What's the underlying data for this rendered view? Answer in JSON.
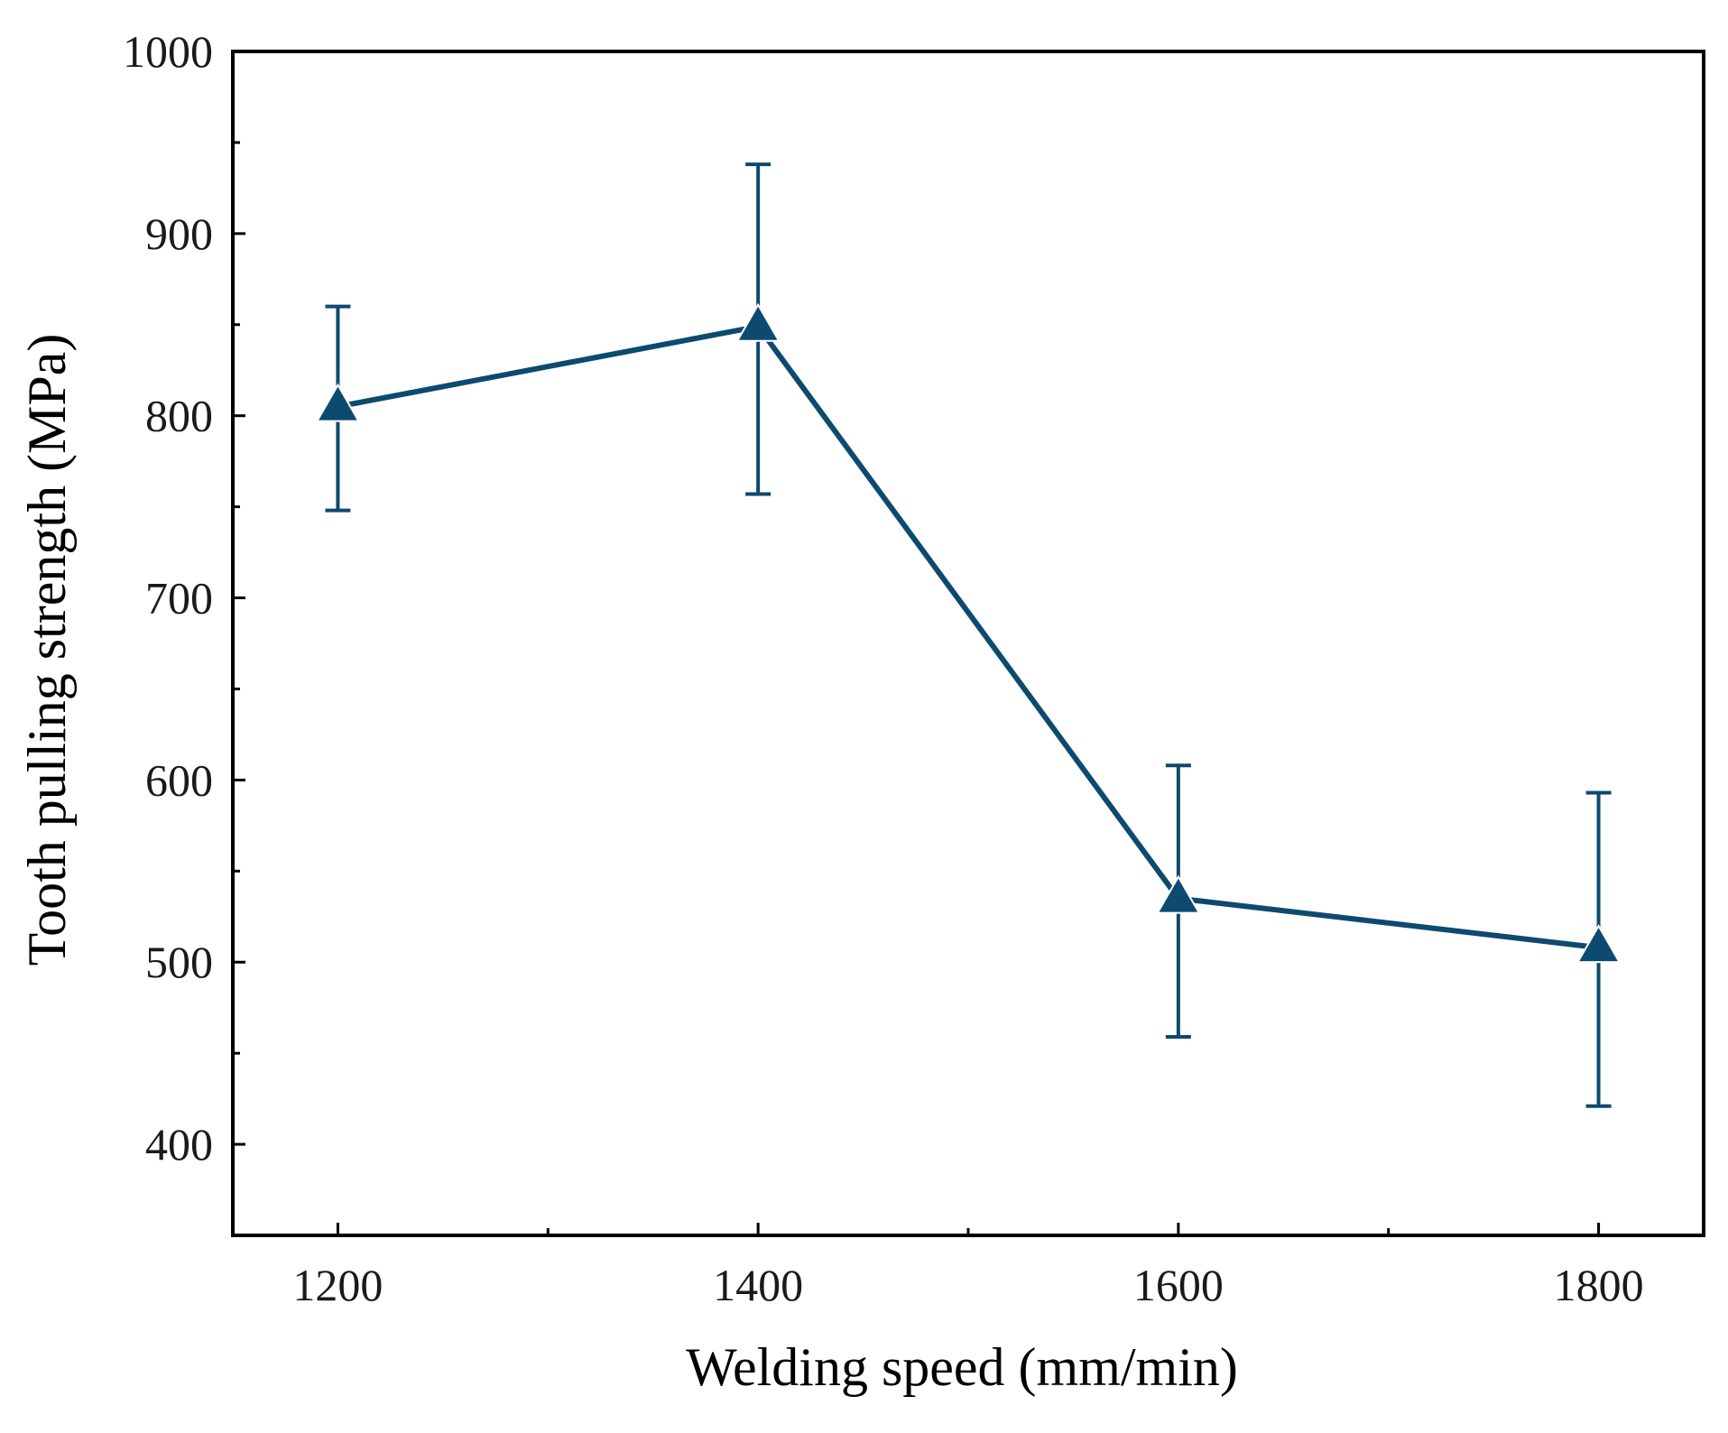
{
  "chart_data": {
    "type": "line",
    "title": "",
    "xlabel": "Welding speed (mm/min)",
    "ylabel": "Tooth pulling strength (MPa)",
    "x": [
      1200,
      1400,
      1600,
      1800
    ],
    "xlim": [
      1150,
      1850
    ],
    "ylim": [
      350,
      1000
    ],
    "x_major_ticks": [
      1200,
      1400,
      1600,
      1800
    ],
    "x_minor_ticks": [
      1300,
      1500,
      1700
    ],
    "y_major_ticks": [
      400,
      500,
      600,
      700,
      800,
      900,
      1000
    ],
    "y_minor_ticks": [
      450,
      550,
      650,
      750,
      850,
      950
    ],
    "grid": false,
    "legend": "none",
    "color": "#0d4a70",
    "marker": "triangle",
    "series": [
      {
        "name": "Tooth pulling strength",
        "values": [
          805,
          849,
          535,
          508
        ],
        "error_low": [
          748,
          757,
          459,
          421
        ],
        "error_high": [
          860,
          938,
          608,
          593
        ]
      }
    ]
  }
}
